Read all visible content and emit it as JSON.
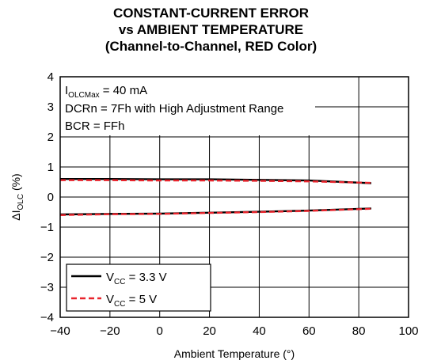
{
  "title": {
    "line1": "CONSTANT-CURRENT ERROR",
    "line2": "vs AMBIENT TEMPERATURE",
    "line3": "(Channel-to-Channel, RED Color)"
  },
  "annotations": {
    "line1_main": "I",
    "line1_sub": "OLCMax",
    "line1_rest": " = 40 mA",
    "line2": "DCRn = 7Fh with High Adjustment Range",
    "line3": "BCR = FFh"
  },
  "chart_data": {
    "type": "line",
    "title": "CONSTANT-CURRENT ERROR vs AMBIENT TEMPERATURE (Channel-to-Channel, RED Color)",
    "xlabel": "Ambient Temperature (°)",
    "ylabel_main": "ΔI",
    "ylabel_sub": "OLC",
    "ylabel_rest": " (%)",
    "xlim": [
      -40,
      100
    ],
    "ylim": [
      -4,
      4
    ],
    "xticks": [
      -40,
      -20,
      0,
      20,
      40,
      60,
      80,
      100
    ],
    "xtick_labels": [
      "−40",
      "−20",
      "0",
      "20",
      "40",
      "60",
      "80",
      "100"
    ],
    "yticks": [
      4,
      3,
      2,
      1,
      0,
      -1,
      -2,
      -3,
      -4
    ],
    "ytick_labels": [
      "4",
      "3",
      "2",
      "1",
      "0",
      "−1",
      "−2",
      "−3",
      "−4"
    ],
    "grid": true,
    "legend_position": "bottom-left",
    "series": [
      {
        "name_main": "V",
        "name_sub": "CC",
        "name_rest": " = 3.3 V",
        "color": "#000000",
        "dash": "solid",
        "lines": [
          {
            "x": [
              -40,
              -20,
              0,
              20,
              40,
              60,
              85
            ],
            "y": [
              0.6,
              0.6,
              0.59,
              0.59,
              0.57,
              0.55,
              0.46
            ]
          },
          {
            "x": [
              -40,
              -20,
              0,
              20,
              40,
              60,
              85
            ],
            "y": [
              -0.58,
              -0.56,
              -0.55,
              -0.52,
              -0.49,
              -0.45,
              -0.38
            ]
          }
        ]
      },
      {
        "name_main": "V",
        "name_sub": "CC",
        "name_rest": " = 5 V",
        "color": "#e8242c",
        "dash": "dashed",
        "lines": [
          {
            "x": [
              -40,
              -20,
              0,
              20,
              40,
              60,
              85
            ],
            "y": [
              0.56,
              0.56,
              0.55,
              0.55,
              0.54,
              0.52,
              0.47
            ]
          },
          {
            "x": [
              -40,
              -20,
              0,
              20,
              40,
              60,
              85
            ],
            "y": [
              -0.6,
              -0.57,
              -0.56,
              -0.53,
              -0.5,
              -0.46,
              -0.39
            ]
          }
        ]
      }
    ]
  }
}
